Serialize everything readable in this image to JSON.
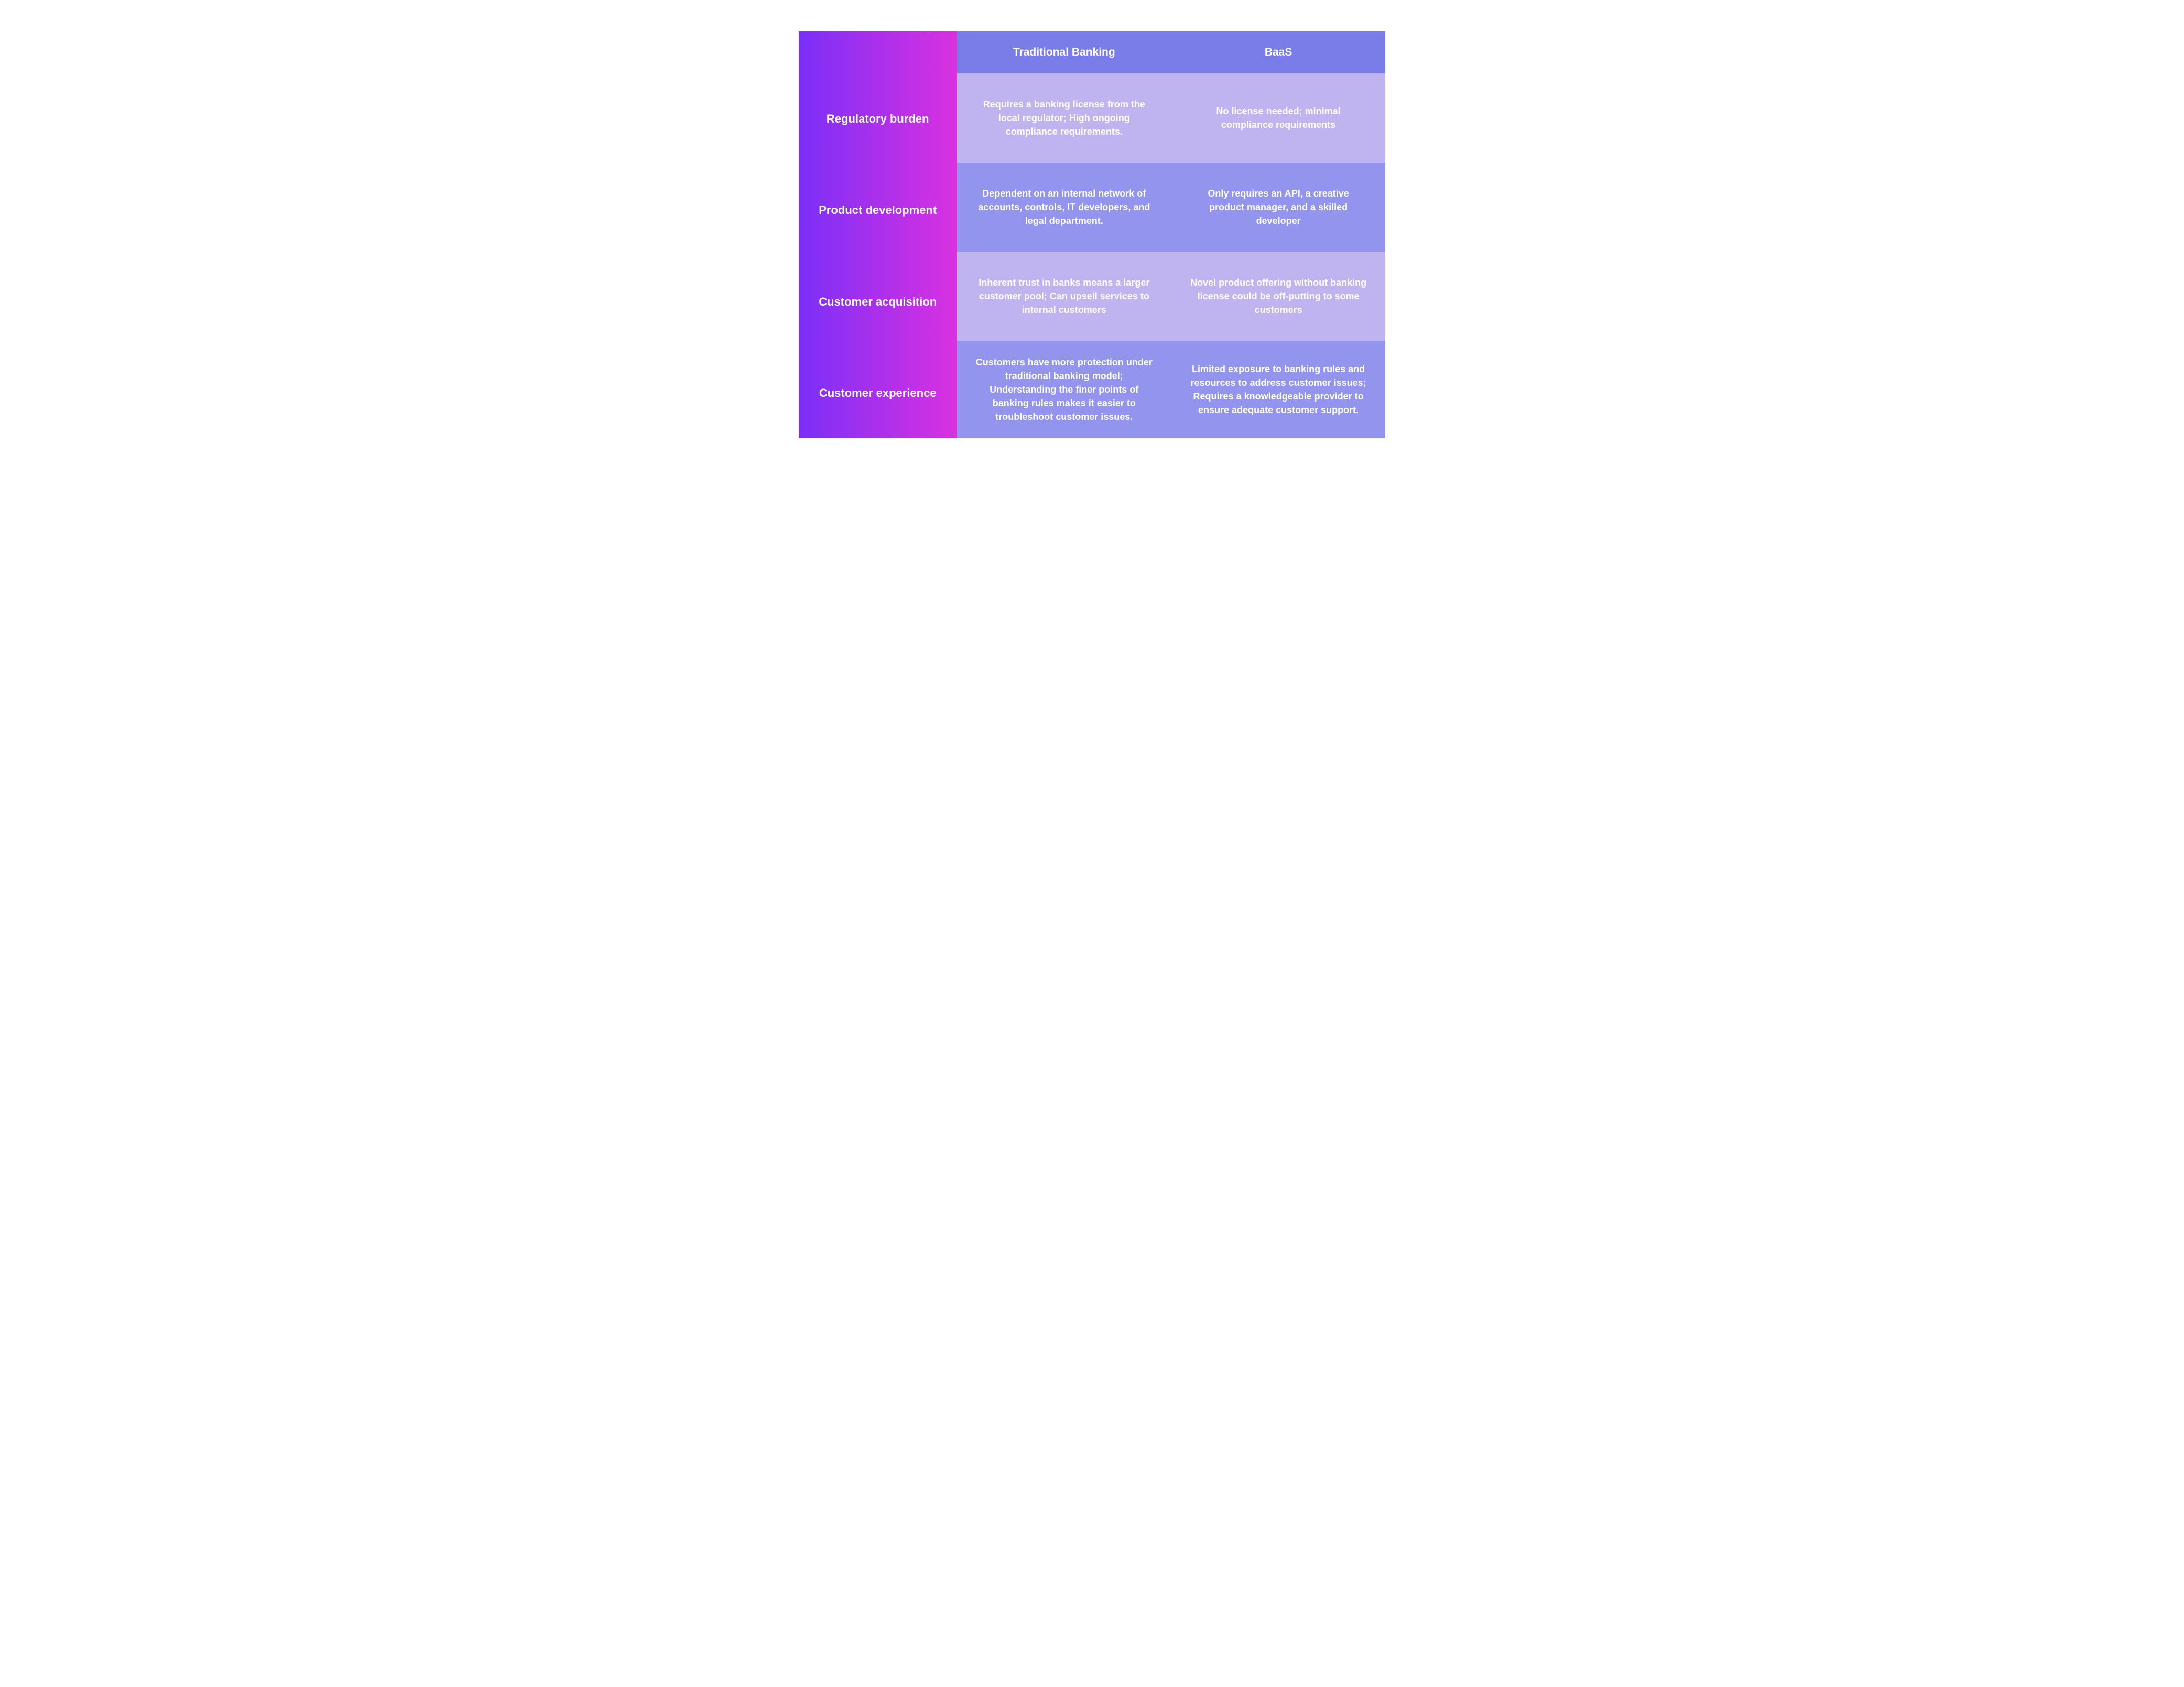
{
  "table": {
    "type": "table",
    "gradient_start": "#7b2ff7",
    "gradient_end": "#d931e0",
    "header_bg": "#7a7de8",
    "cell_light_bg": "#c0b4f0",
    "cell_dark_bg": "#9294ed",
    "text_color": "#ffffff",
    "font_weight_header": 800,
    "font_weight_cell": 700,
    "font_size_header_pt": 16,
    "font_size_rowheader_pt": 17,
    "font_size_cell_pt": 14,
    "columns": [
      "Traditional Banking",
      "BaaS"
    ],
    "rows": [
      {
        "label": "Regulatory burden",
        "traditional": "Requires a banking license from the local regulator; High ongoing compliance requirements.",
        "baas": "No license needed; minimal compliance requirements"
      },
      {
        "label": "Product development",
        "traditional": "Dependent on an internal network of accounts, controls, IT developers, and legal department.",
        "baas": "Only requires an API, a creative product manager, and a skilled developer"
      },
      {
        "label": "Customer acquisition",
        "traditional": "Inherent trust in banks means a larger customer pool;  Can upsell services to internal customers",
        "baas": "Novel product offering without banking license could be off-putting to some customers"
      },
      {
        "label": "Customer experience",
        "traditional": "Customers have more protection under traditional banking model; Understanding the finer points of banking rules makes it easier to troubleshoot customer issues.",
        "baas": "Limited exposure to banking rules and resources to address customer issues; Requires a knowledgeable provider to ensure adequate customer support."
      }
    ]
  }
}
